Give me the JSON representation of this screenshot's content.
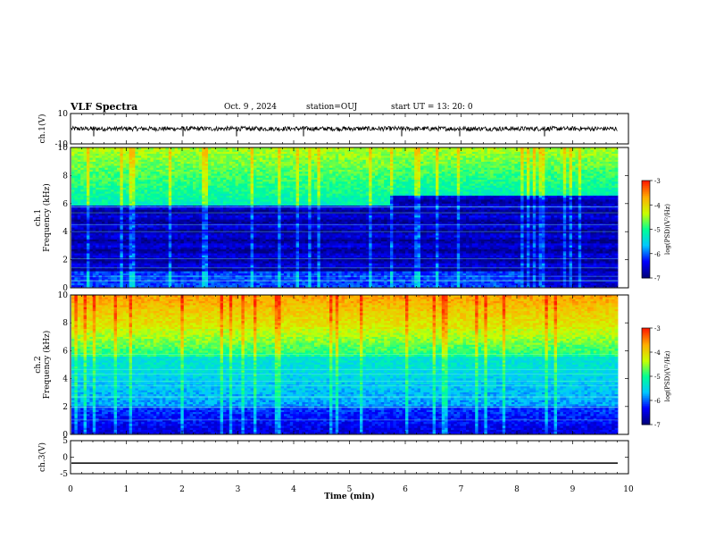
{
  "header": {
    "title": "VLF Spectra",
    "date": "Oct. 9 , 2024",
    "station": "station=OUJ",
    "start_ut": "start UT =  13: 20: 0"
  },
  "chart_data": [
    {
      "type": "line",
      "panel": "ch1-waveform",
      "ylabel": "ch.1(V)",
      "ylim": [
        -10,
        10
      ],
      "yticks": [
        "10",
        "-10"
      ],
      "xlim": [
        0,
        10
      ],
      "description_values": {
        "baseline": 0,
        "noise_amplitude": 1.5
      }
    },
    {
      "type": "heatmap",
      "panel": "ch1-spectrogram",
      "ylabel": "ch.1\nFrequency (kHz)",
      "ylim": [
        0,
        10
      ],
      "yticks": [
        "0",
        "2",
        "4",
        "6",
        "8",
        "10"
      ],
      "xlim": [
        0,
        10
      ],
      "colorbar": {
        "label": "log(PSD)(V²/Hz)",
        "range": [
          -7,
          -3
        ],
        "ticks": [
          "-3",
          "-4",
          "-5",
          "-6",
          "-7"
        ]
      }
    },
    {
      "type": "heatmap",
      "panel": "ch2-spectrogram",
      "ylabel": "ch.2\nFrequency (kHz)",
      "ylim": [
        0,
        10
      ],
      "yticks": [
        "0",
        "2",
        "4",
        "6",
        "8",
        "10"
      ],
      "xlim": [
        0,
        10
      ],
      "colorbar": {
        "label": "log(PSD)(V²/Hz)",
        "range": [
          -7,
          -3
        ],
        "ticks": [
          "-3",
          "-4",
          "-5",
          "-6",
          "-7"
        ]
      }
    },
    {
      "type": "line",
      "panel": "ch3-waveform",
      "ylabel": "ch.3(V)",
      "ylim": [
        -5,
        5
      ],
      "yticks": [
        "5",
        "0",
        "-5"
      ],
      "xlim": [
        0,
        10
      ],
      "description_values": {
        "baseline": -1.8
      }
    }
  ],
  "x_axis": {
    "label": "Time (min)",
    "ticks": [
      "0",
      "1",
      "2",
      "3",
      "4",
      "5",
      "6",
      "7",
      "8",
      "9",
      "10"
    ]
  },
  "colors": {
    "colormap": [
      "#00007a",
      "#0000ff",
      "#00c8ff",
      "#00ff96",
      "#c8ff00",
      "#ffb000",
      "#ff2000"
    ]
  }
}
